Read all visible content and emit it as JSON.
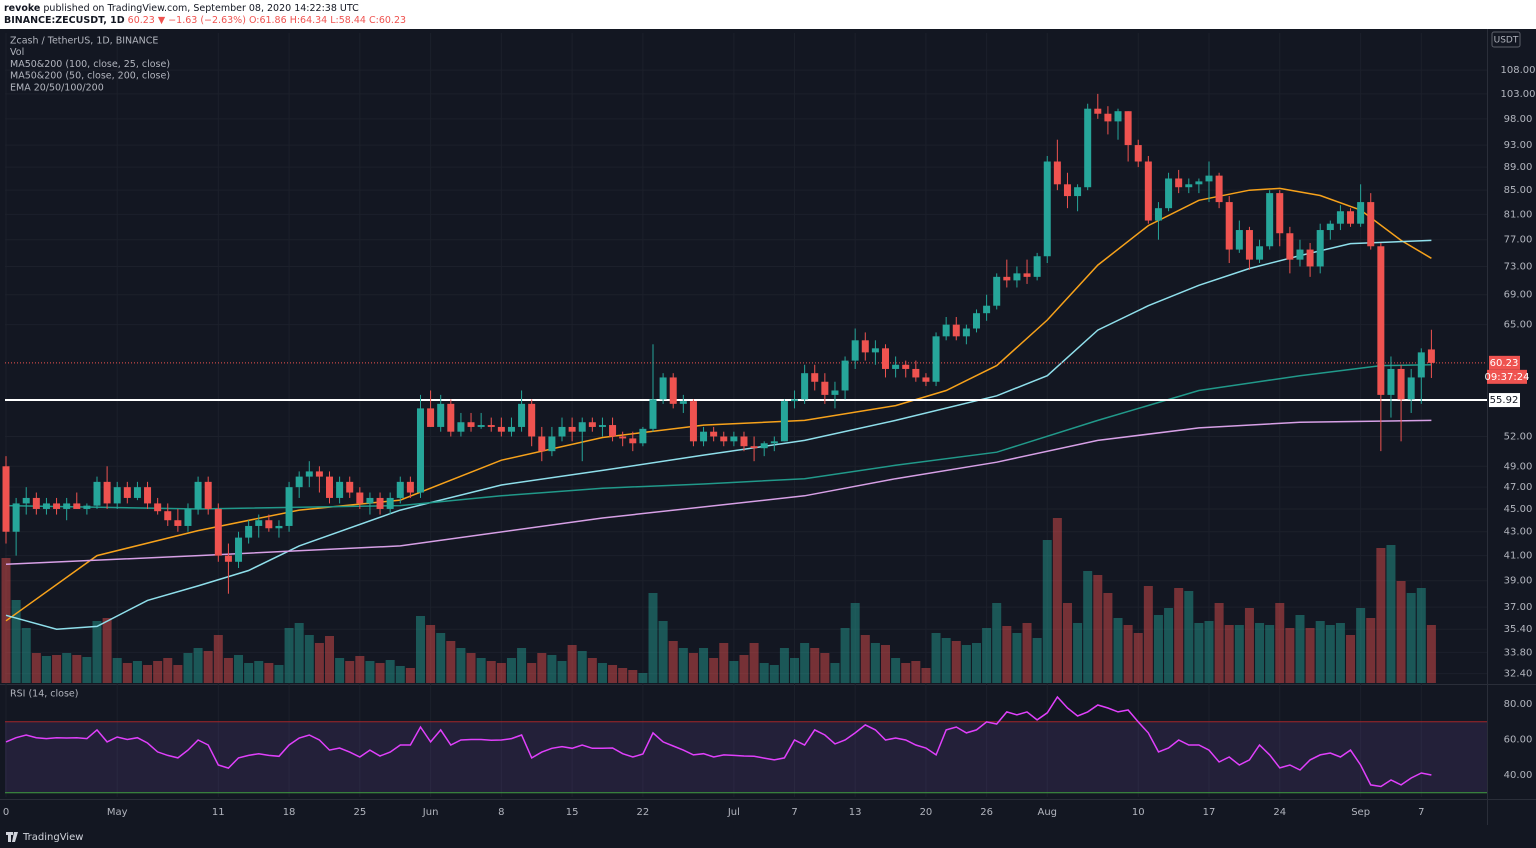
{
  "chart_data": {
    "type": "candlestick",
    "header": {
      "author": "revoke",
      "published": "published on TradingView.com, September 08, 2020 14:22:38 UTC",
      "symbol": "BINANCE:ZECUSDT, 1D",
      "price": "60.23",
      "change": "▼ −1.63 (−2.63%)",
      "ohlc": [
        "O:61.86",
        "H:64.34",
        "L:58.44",
        "C:60.23"
      ]
    },
    "legend_lines": [
      "Zcash / TetherUS, 1D, BINANCE",
      "Vol",
      "MA50&200 (100, close, 25, close)",
      "MA50&200 (50, close, 200, close)",
      "EMA 20/50/100/200"
    ],
    "currency": "USDT",
    "footer": "TradingView",
    "log_scale": true,
    "grid": true,
    "up_color": "#26a69a",
    "down_color": "#ef5350",
    "xlim": [
      -0.1,
      146.5
    ],
    "xticks": [
      {
        "value": 0,
        "label": "0"
      },
      {
        "value": 11,
        "label": "May"
      },
      {
        "value": 21,
        "label": "11"
      },
      {
        "value": 28,
        "label": "18"
      },
      {
        "value": 35,
        "label": "25"
      },
      {
        "value": 42,
        "label": "Jun"
      },
      {
        "value": 49,
        "label": "8"
      },
      {
        "value": 56,
        "label": "15"
      },
      {
        "value": 63,
        "label": "22"
      },
      {
        "value": 72,
        "label": "Jul"
      },
      {
        "value": 78,
        "label": "7"
      },
      {
        "value": 84,
        "label": "13"
      },
      {
        "value": 91,
        "label": "20"
      },
      {
        "value": 97,
        "label": "26"
      },
      {
        "value": 103,
        "label": "Aug"
      },
      {
        "value": 112,
        "label": "10"
      },
      {
        "value": 119,
        "label": "17"
      },
      {
        "value": 126,
        "label": "24"
      },
      {
        "value": 134,
        "label": "Sep"
      },
      {
        "value": 140,
        "label": "7"
      }
    ],
    "ylim": [
      31.8,
      116.3
    ],
    "yticks": [
      {
        "value": 108,
        "label": "108.00"
      },
      {
        "value": 103,
        "label": "103.00"
      },
      {
        "value": 98,
        "label": "98.00"
      },
      {
        "value": 93,
        "label": "93.00"
      },
      {
        "value": 89,
        "label": "89.00"
      },
      {
        "value": 85,
        "label": "85.00"
      },
      {
        "value": 81,
        "label": "81.00"
      },
      {
        "value": 77,
        "label": "77.00"
      },
      {
        "value": 73,
        "label": "73.00"
      },
      {
        "value": 69,
        "label": "69.00"
      },
      {
        "value": 65,
        "label": "65.00"
      },
      {
        "value": 52,
        "label": "52.00"
      },
      {
        "value": 49,
        "label": "49.00"
      },
      {
        "value": 47,
        "label": "47.00"
      },
      {
        "value": 45,
        "label": "45.00"
      },
      {
        "value": 43,
        "label": "43.00"
      },
      {
        "value": 41,
        "label": "41.00"
      },
      {
        "value": 39,
        "label": "39.00"
      },
      {
        "value": 37,
        "label": "37.00"
      },
      {
        "value": 35.4,
        "label": "35.40"
      },
      {
        "value": 33.8,
        "label": "33.80"
      },
      {
        "value": 32.4,
        "label": "32.40"
      }
    ],
    "candles": [
      [
        49,
        50,
        42,
        43
      ],
      [
        43,
        46,
        41,
        45.5
      ],
      [
        45.5,
        47,
        44.5,
        46
      ],
      [
        46,
        46.5,
        44.5,
        45
      ],
      [
        45,
        46,
        44.5,
        45.5
      ],
      [
        45.5,
        46,
        44.5,
        45
      ],
      [
        45,
        46,
        44,
        45.5
      ],
      [
        45.5,
        46.5,
        45,
        45
      ],
      [
        45,
        45.5,
        44.5,
        45.3
      ],
      [
        45.3,
        48,
        45,
        47.5
      ],
      [
        47.5,
        49,
        45,
        45.5
      ],
      [
        45.5,
        47.5,
        45,
        47
      ],
      [
        47,
        47.5,
        45.5,
        46
      ],
      [
        46,
        47.5,
        45.8,
        47
      ],
      [
        47,
        47.5,
        45,
        45.5
      ],
      [
        45.5,
        46,
        44.5,
        44.8
      ],
      [
        44.8,
        45.5,
        43.5,
        44
      ],
      [
        44,
        45,
        43,
        43.5
      ],
      [
        43.5,
        45.5,
        43,
        45
      ],
      [
        45,
        48,
        44.5,
        47.5
      ],
      [
        47.5,
        48,
        44.5,
        45
      ],
      [
        45,
        45.5,
        40.5,
        41
      ],
      [
        41,
        42,
        38,
        40.5
      ],
      [
        40.5,
        43,
        40,
        42.5
      ],
      [
        42.5,
        44,
        42,
        43.5
      ],
      [
        43.5,
        44.5,
        42.5,
        44
      ],
      [
        44,
        44.5,
        43,
        43.3
      ],
      [
        43.3,
        44,
        42.5,
        43.5
      ],
      [
        43.5,
        47.5,
        43,
        47
      ],
      [
        47,
        48.5,
        46,
        48
      ],
      [
        48,
        49.5,
        47,
        48.5
      ],
      [
        48.5,
        49,
        46.5,
        48
      ],
      [
        48,
        48.5,
        45.5,
        46
      ],
      [
        46,
        48,
        45.5,
        47.5
      ],
      [
        47.5,
        48,
        46,
        46.5
      ],
      [
        46.5,
        47,
        45,
        45.5
      ],
      [
        45.5,
        46.5,
        44.5,
        46
      ],
      [
        46,
        46.5,
        44.5,
        45
      ],
      [
        45,
        46.5,
        44.5,
        46
      ],
      [
        46,
        48,
        45.5,
        47.5
      ],
      [
        47.5,
        48,
        46,
        46.5
      ],
      [
        46.5,
        56.5,
        46,
        55
      ],
      [
        55,
        57,
        53,
        53
      ],
      [
        53,
        56.5,
        52.5,
        55.5
      ],
      [
        55.5,
        56,
        52,
        52.5
      ],
      [
        52.5,
        54.5,
        52,
        53.5
      ],
      [
        53.5,
        54.5,
        52.5,
        53
      ],
      [
        53,
        54.5,
        52.8,
        53.2
      ],
      [
        53.2,
        54,
        52.5,
        53
      ],
      [
        53,
        54,
        52,
        52.5
      ],
      [
        52.5,
        54,
        52,
        53
      ],
      [
        53,
        57,
        52.5,
        55.5
      ],
      [
        55.5,
        56,
        51,
        52
      ],
      [
        52,
        53,
        49.5,
        50.5
      ],
      [
        50.5,
        53,
        50,
        52
      ],
      [
        52,
        54,
        51.5,
        53
      ],
      [
        53,
        54,
        51.5,
        52.5
      ],
      [
        52.5,
        54,
        49.5,
        53.5
      ],
      [
        53.5,
        54,
        52.5,
        53
      ],
      [
        53,
        54,
        52,
        53.2
      ],
      [
        53.2,
        54,
        51.5,
        52
      ],
      [
        52,
        52.5,
        51,
        51.8
      ],
      [
        51.8,
        52.5,
        50.5,
        51.3
      ],
      [
        51.3,
        53,
        51,
        52.8
      ],
      [
        52.8,
        62.5,
        52.5,
        56
      ],
      [
        56,
        59,
        55.5,
        58.5
      ],
      [
        58.5,
        59,
        55,
        55.5
      ],
      [
        55.5,
        56.5,
        54.5,
        55.8
      ],
      [
        55.8,
        56,
        51,
        51.5
      ],
      [
        51.5,
        53,
        51,
        52.5
      ],
      [
        52.5,
        53,
        51.5,
        52
      ],
      [
        52,
        52.5,
        51,
        51.5
      ],
      [
        51.5,
        52.5,
        51,
        52
      ],
      [
        52,
        52.5,
        50.5,
        51
      ],
      [
        51,
        52,
        49.5,
        50.8
      ],
      [
        50.8,
        51.5,
        50,
        51.3
      ],
      [
        51.3,
        52,
        50.5,
        51.5
      ],
      [
        51.5,
        56,
        51.5,
        55.8
      ],
      [
        55.8,
        57,
        55,
        56
      ],
      [
        56,
        60,
        55.5,
        59
      ],
      [
        59,
        60,
        57,
        58
      ],
      [
        58,
        59,
        55.5,
        56.5
      ],
      [
        56.5,
        58,
        55,
        57
      ],
      [
        57,
        61,
        56,
        60.5
      ],
      [
        60.5,
        64.5,
        59.5,
        63
      ],
      [
        63,
        64,
        60.5,
        61.5
      ],
      [
        61.5,
        63,
        60,
        62
      ],
      [
        62,
        62.5,
        58.5,
        59.5
      ],
      [
        59.5,
        61,
        58.5,
        60
      ],
      [
        60,
        60.5,
        58.5,
        59.5
      ],
      [
        59.5,
        60.5,
        58,
        58.5
      ],
      [
        58.5,
        59,
        57.5,
        58
      ],
      [
        58,
        64,
        57.5,
        63.5
      ],
      [
        63.5,
        66,
        63,
        65
      ],
      [
        65,
        66,
        63,
        63.5
      ],
      [
        63.5,
        65,
        62.5,
        64.5
      ],
      [
        64.5,
        67,
        64,
        66.5
      ],
      [
        66.5,
        69,
        65.5,
        67.5
      ],
      [
        67.5,
        72,
        67,
        71.5
      ],
      [
        71.5,
        74,
        70,
        71
      ],
      [
        71,
        73,
        70,
        72
      ],
      [
        72,
        74,
        70.5,
        71.5
      ],
      [
        71.5,
        75,
        71,
        74.5
      ],
      [
        74.5,
        91,
        73.5,
        90
      ],
      [
        90,
        94,
        85,
        86
      ],
      [
        86,
        88,
        82,
        84
      ],
      [
        84,
        86,
        81.5,
        85.5
      ],
      [
        85.5,
        101,
        85,
        100
      ],
      [
        100,
        103,
        98,
        99
      ],
      [
        99,
        100.5,
        95,
        97.5
      ],
      [
        97.5,
        100,
        94,
        99.5
      ],
      [
        99.5,
        99.5,
        90,
        93
      ],
      [
        93,
        94,
        89,
        90
      ],
      [
        90,
        91,
        79.5,
        80
      ],
      [
        80,
        83,
        77,
        82
      ],
      [
        82,
        88,
        81.5,
        87
      ],
      [
        87,
        88.5,
        84.5,
        85.5
      ],
      [
        85.5,
        87,
        84.5,
        86
      ],
      [
        86,
        87,
        84.5,
        86.5
      ],
      [
        86.5,
        90,
        83,
        87.5
      ],
      [
        87.5,
        88,
        82,
        83
      ],
      [
        83,
        84,
        73.5,
        75.5
      ],
      [
        75.5,
        80,
        75,
        78.5
      ],
      [
        78.5,
        79,
        72.5,
        74
      ],
      [
        74,
        77,
        73.5,
        76
      ],
      [
        76,
        85,
        75.5,
        84.5
      ],
      [
        84.5,
        85,
        76,
        78
      ],
      [
        78,
        79,
        72,
        74
      ],
      [
        74,
        77,
        73,
        75.5
      ],
      [
        75.5,
        76.5,
        71.5,
        73
      ],
      [
        73,
        79.5,
        72,
        78.5
      ],
      [
        78.5,
        80,
        77,
        79.5
      ],
      [
        79.5,
        82.5,
        78.5,
        81.5
      ],
      [
        81.5,
        82,
        79,
        79.5
      ],
      [
        79.5,
        86,
        79,
        83
      ],
      [
        83,
        84.5,
        75.5,
        76
      ],
      [
        76,
        76.5,
        50.5,
        56.5
      ],
      [
        56.5,
        61,
        54,
        59.5
      ],
      [
        59.5,
        60,
        51.5,
        56
      ],
      [
        56,
        59.5,
        54.5,
        58.5
      ],
      [
        58.5,
        62,
        55.5,
        61.5
      ],
      [
        61.86,
        64.34,
        58.44,
        60.23
      ]
    ],
    "volume": {
      "vlim": [
        0,
        170
      ],
      "values": [
        125,
        83,
        55,
        30,
        27,
        28,
        30,
        28,
        26,
        62,
        65,
        25,
        20,
        22,
        18,
        22,
        25,
        18,
        30,
        35,
        32,
        48,
        25,
        28,
        20,
        22,
        20,
        18,
        55,
        60,
        48,
        40,
        47,
        25,
        22,
        27,
        22,
        20,
        23,
        17,
        15,
        67,
        58,
        50,
        42,
        35,
        30,
        25,
        22,
        20,
        25,
        35,
        20,
        30,
        28,
        22,
        38,
        32,
        25,
        20,
        18,
        15,
        13,
        10,
        90,
        62,
        42,
        35,
        30,
        35,
        25,
        40,
        22,
        28,
        40,
        20,
        18,
        35,
        25,
        40,
        35,
        30,
        20,
        55,
        80,
        48,
        40,
        38,
        25,
        20,
        22,
        15,
        50,
        45,
        42,
        38,
        40,
        55,
        80,
        57,
        50,
        60,
        45,
        143,
        165,
        80,
        60,
        112,
        108,
        90,
        65,
        58,
        50,
        97,
        68,
        75,
        95,
        92,
        60,
        62,
        80,
        58,
        58,
        75,
        60,
        58,
        80,
        55,
        68,
        55,
        62,
        58,
        60,
        48,
        75,
        65,
        135,
        138,
        102,
        90,
        95,
        58
      ]
    },
    "lines": [
      {
        "color": "#f7a21b",
        "x": [
          0,
          9,
          19,
          29,
          39,
          49,
          59,
          69,
          79,
          88,
          93,
          98,
          103,
          108,
          113,
          118,
          123,
          126,
          130,
          134,
          138,
          141
        ],
        "values": [
          36.0,
          41.0,
          43.1,
          44.9,
          45.8,
          49.6,
          51.9,
          53.2,
          53.7,
          55.3,
          57.0,
          59.9,
          65.6,
          73.2,
          79.2,
          83.3,
          85.0,
          85.3,
          84.1,
          81.7,
          76.9,
          74.2
        ]
      },
      {
        "color": "#8fdfeb",
        "x": [
          0,
          5,
          9,
          14,
          19,
          24,
          29,
          39,
          49,
          59,
          69,
          79,
          88,
          98,
          103,
          108,
          113,
          118,
          123,
          128,
          133,
          141
        ],
        "values": [
          36.4,
          35.4,
          35.6,
          37.5,
          38.6,
          39.8,
          41.8,
          44.9,
          47.2,
          48.6,
          50.1,
          51.6,
          53.7,
          56.4,
          58.7,
          64.3,
          67.5,
          70.3,
          72.7,
          74.6,
          76.4,
          76.9
        ]
      },
      {
        "color": "#21998a",
        "x": [
          0,
          19,
          39,
          49,
          59,
          69,
          79,
          88,
          98,
          108,
          118,
          128,
          136,
          141
        ],
        "values": [
          45.3,
          45.0,
          45.3,
          46.2,
          46.9,
          47.3,
          47.8,
          49.1,
          50.4,
          53.7,
          57.0,
          58.7,
          59.9,
          60.0
        ]
      },
      {
        "color": "#d7a0e6",
        "x": [
          0,
          19,
          39,
          59,
          79,
          88,
          98,
          108,
          118,
          128,
          141
        ],
        "values": [
          40.3,
          41.0,
          41.8,
          44.2,
          46.2,
          47.8,
          49.4,
          51.6,
          52.9,
          53.5,
          53.7
        ]
      }
    ],
    "level": 55.92,
    "last_price": 60.23,
    "countdown": "09:37:24",
    "rsi": {
      "label": "RSI (14, close)",
      "color": "#e040fb",
      "ylim": [
        27.6,
        90.1
      ],
      "upper": 70,
      "lower": 30,
      "yticks": [
        {
          "value": 80,
          "label": "80.00"
        },
        {
          "value": 60,
          "label": "60.00"
        },
        {
          "value": 40,
          "label": "40.00"
        }
      ],
      "values": [
        58.6,
        61,
        62.5,
        61,
        60.5,
        61,
        60.8,
        61,
        60.5,
        65.4,
        58.6,
        61.4,
        60,
        61,
        58,
        53,
        51,
        49.6,
        54,
        59.7,
        56.9,
        45.6,
        43.9,
        49.6,
        51,
        52,
        51,
        50.5,
        56.9,
        60.8,
        62.5,
        59.7,
        54,
        55.2,
        52.9,
        50.1,
        54,
        50.7,
        52.9,
        56.9,
        56.9,
        67,
        58.6,
        65.4,
        56.9,
        59.7,
        60,
        60,
        59.5,
        59.7,
        60.5,
        62.5,
        49.6,
        52.9,
        55,
        56,
        55,
        56.9,
        55,
        55,
        55.2,
        52,
        50.1,
        51.8,
        63.7,
        58.6,
        56.3,
        54,
        51.3,
        52,
        50.1,
        51.3,
        51,
        50.7,
        50.5,
        49.5,
        48.5,
        49.6,
        59.7,
        56.9,
        65.4,
        62.5,
        57.5,
        59.7,
        63.7,
        68.2,
        65.4,
        59.7,
        60.8,
        59.7,
        56.9,
        55.2,
        51.3,
        65.4,
        67,
        63.7,
        65.4,
        69.9,
        68.7,
        75.5,
        73.8,
        75.5,
        71,
        75,
        83.9,
        77.7,
        73.2,
        75.5,
        79.4,
        77.7,
        75.5,
        76.6,
        69.9,
        63.7,
        53,
        55.2,
        59.7,
        56.9,
        56.9,
        54,
        47.3,
        50.1,
        45.6,
        48.5,
        56.9,
        51.3,
        44,
        45.6,
        42.8,
        48.5,
        51.3,
        52.4,
        50.1,
        54,
        45.6,
        34.4,
        33.5,
        37.2,
        34.4,
        38.3,
        41.1,
        40
      ]
    }
  }
}
